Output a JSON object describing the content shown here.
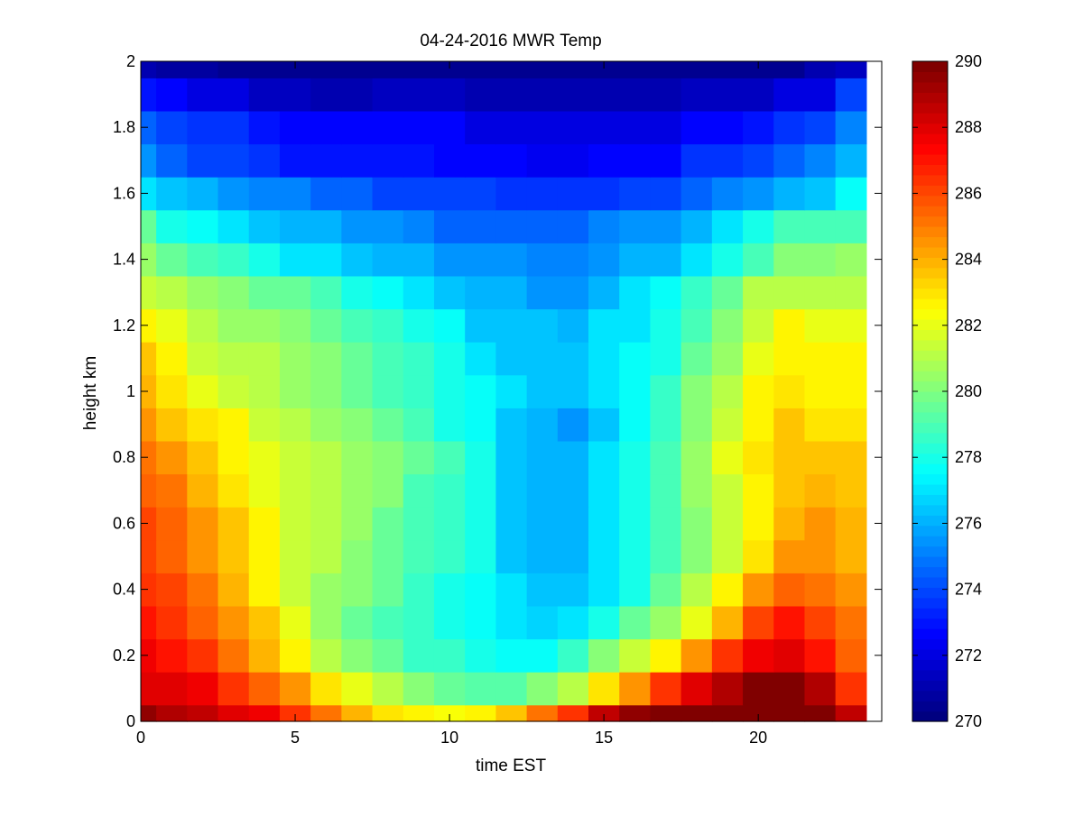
{
  "chart_data": {
    "type": "heatmap",
    "title": "04-24-2016 MWR Temp",
    "xlabel": "time EST",
    "ylabel": "height km",
    "xlim": [
      0,
      24
    ],
    "ylim": [
      0,
      2
    ],
    "xticks": [
      0,
      5,
      10,
      15,
      20
    ],
    "yticks": [
      0,
      0.2,
      0.4,
      0.6,
      0.8,
      1,
      1.2,
      1.4,
      1.6,
      1.8,
      2
    ],
    "colorbar": {
      "range": [
        270,
        290
      ],
      "ticks": [
        270,
        272,
        274,
        276,
        278,
        280,
        282,
        284,
        286,
        288,
        290
      ],
      "colormap": "jet",
      "steps": 64
    },
    "grid": false,
    "x": [
      0,
      1,
      2,
      3,
      4,
      5,
      6,
      7,
      8,
      9,
      10,
      11,
      12,
      13,
      14,
      15,
      16,
      17,
      18,
      19,
      20,
      21,
      22,
      23
    ],
    "y": [
      0,
      0.1,
      0.2,
      0.3,
      0.4,
      0.5,
      0.6,
      0.7,
      0.8,
      0.9,
      1.0,
      1.1,
      1.2,
      1.3,
      1.4,
      1.5,
      1.6,
      1.7,
      1.8,
      1.9,
      2.0
    ],
    "z": [
      [
        289.5,
        289.0,
        288.5,
        288.0,
        287.5,
        286.5,
        285.0,
        284.0,
        283.0,
        282.5,
        282.2,
        282.5,
        283.5,
        285.0,
        286.5,
        288.5,
        289.5,
        289.8,
        289.8,
        289.8,
        289.8,
        289.8,
        289.8,
        288.5
      ],
      [
        288.0,
        288.0,
        287.5,
        286.5,
        285.5,
        284.5,
        283.0,
        282.0,
        281.0,
        280.0,
        279.5,
        279.3,
        279.3,
        280.0,
        281.0,
        283.0,
        284.5,
        286.5,
        288.0,
        289.0,
        290.0,
        290.0,
        289.0,
        286.5
      ],
      [
        287.5,
        287.0,
        286.5,
        285.0,
        284.0,
        282.5,
        281.0,
        280.0,
        279.5,
        278.5,
        278.5,
        278.0,
        277.5,
        277.5,
        278.5,
        280.0,
        281.5,
        282.5,
        284.5,
        286.5,
        287.5,
        288.0,
        287.0,
        285.5
      ],
      [
        287.0,
        286.5,
        285.5,
        284.5,
        283.5,
        282.0,
        280.5,
        279.5,
        279.0,
        278.5,
        278.0,
        277.5,
        277.0,
        276.8,
        277.0,
        278.0,
        279.5,
        280.5,
        282.0,
        284.0,
        286.0,
        287.0,
        286.0,
        285.0
      ],
      [
        286.5,
        286.0,
        285.0,
        284.0,
        282.5,
        281.5,
        280.5,
        280.0,
        279.5,
        278.5,
        278.0,
        277.5,
        277.0,
        276.5,
        276.5,
        277.0,
        278.0,
        279.5,
        281.0,
        282.5,
        284.5,
        285.5,
        285.0,
        284.5
      ],
      [
        286.0,
        285.5,
        284.5,
        283.5,
        282.5,
        281.5,
        281.0,
        280.0,
        279.5,
        279.0,
        278.5,
        278.0,
        276.5,
        276.0,
        276.0,
        277.0,
        278.0,
        279.0,
        280.0,
        281.5,
        283.0,
        284.5,
        284.5,
        284.0
      ],
      [
        286.0,
        285.5,
        284.5,
        283.5,
        282.5,
        281.5,
        281.0,
        280.5,
        279.5,
        279.0,
        278.5,
        278.0,
        276.5,
        276.0,
        276.0,
        277.0,
        278.0,
        279.0,
        280.0,
        281.5,
        282.5,
        284.0,
        284.5,
        284.0
      ],
      [
        285.5,
        285.0,
        284.0,
        283.0,
        282.0,
        281.5,
        281.0,
        280.5,
        280.0,
        279.0,
        278.5,
        278.0,
        276.5,
        276.0,
        276.0,
        277.0,
        278.0,
        279.0,
        280.5,
        281.5,
        282.5,
        283.5,
        284.0,
        283.5
      ],
      [
        285.0,
        284.5,
        283.5,
        282.5,
        282.0,
        281.5,
        281.0,
        280.5,
        280.0,
        279.5,
        279.0,
        278.0,
        276.5,
        276.0,
        276.0,
        277.0,
        278.0,
        279.0,
        280.5,
        282.0,
        283.0,
        283.5,
        283.5,
        283.5
      ],
      [
        284.5,
        283.5,
        283.0,
        282.5,
        281.5,
        281.0,
        280.5,
        280.0,
        279.5,
        279.0,
        278.0,
        277.5,
        276.5,
        276.0,
        275.5,
        276.5,
        277.5,
        278.5,
        280.0,
        281.5,
        282.5,
        283.5,
        283.0,
        283.0
      ],
      [
        284.0,
        283.0,
        282.0,
        281.5,
        281.0,
        280.5,
        280.0,
        279.5,
        279.0,
        278.5,
        278.0,
        277.5,
        277.0,
        276.5,
        276.5,
        277.0,
        277.5,
        278.5,
        280.0,
        281.0,
        282.5,
        283.0,
        282.5,
        282.5
      ],
      [
        283.5,
        282.5,
        281.5,
        281.0,
        281.0,
        280.5,
        280.0,
        279.5,
        279.0,
        278.5,
        278.0,
        277.0,
        276.5,
        276.5,
        276.5,
        277.0,
        277.5,
        278.0,
        279.5,
        280.5,
        282.0,
        282.5,
        282.5,
        282.5
      ],
      [
        282.5,
        282.0,
        281.0,
        280.5,
        280.5,
        280.0,
        279.5,
        279.0,
        278.5,
        278.0,
        277.5,
        276.5,
        276.5,
        276.5,
        276.0,
        277.0,
        277.0,
        278.0,
        279.0,
        280.0,
        281.5,
        282.5,
        282.0,
        282.0
      ],
      [
        281.5,
        281.0,
        280.5,
        280.0,
        279.5,
        279.5,
        279.0,
        278.0,
        277.5,
        277.0,
        276.5,
        276.0,
        276.0,
        275.5,
        275.5,
        276.0,
        277.0,
        277.5,
        278.5,
        279.5,
        281.0,
        281.0,
        281.0,
        281.0
      ],
      [
        280.5,
        279.5,
        279.0,
        278.5,
        278.0,
        277.0,
        277.0,
        276.5,
        276.0,
        276.0,
        275.5,
        275.5,
        275.5,
        275.0,
        275.0,
        275.5,
        276.0,
        276.0,
        277.0,
        278.0,
        279.0,
        280.0,
        280.0,
        280.5
      ],
      [
        279.5,
        278.0,
        277.5,
        277.0,
        276.5,
        276.0,
        276.0,
        275.5,
        275.5,
        275.0,
        274.5,
        274.5,
        274.5,
        274.5,
        274.5,
        275.0,
        275.5,
        275.5,
        276.0,
        277.0,
        278.0,
        279.0,
        279.0,
        279.0
      ],
      [
        277.0,
        276.5,
        276.0,
        275.5,
        275.0,
        275.0,
        274.5,
        274.5,
        274.0,
        274.0,
        274.0,
        274.0,
        273.5,
        273.5,
        273.5,
        273.5,
        274.0,
        274.0,
        274.5,
        275.0,
        275.5,
        276.0,
        276.5,
        277.5
      ],
      [
        275.5,
        274.5,
        274.0,
        274.0,
        273.5,
        273.0,
        273.0,
        273.0,
        273.0,
        273.0,
        272.8,
        272.5,
        272.5,
        272.3,
        272.3,
        272.5,
        272.5,
        272.5,
        273.5,
        273.5,
        274.0,
        274.5,
        275.0,
        276.0
      ],
      [
        274.5,
        274.0,
        273.5,
        273.5,
        273.0,
        272.5,
        272.5,
        272.5,
        272.5,
        272.5,
        272.5,
        272.0,
        272.0,
        272.0,
        272.0,
        272.0,
        272.0,
        272.0,
        272.5,
        272.5,
        273.0,
        273.5,
        274.0,
        275.0
      ],
      [
        273.0,
        272.5,
        272.0,
        272.0,
        271.5,
        271.5,
        271.0,
        271.0,
        271.5,
        271.5,
        271.5,
        271.2,
        271.0,
        271.0,
        271.0,
        271.0,
        271.0,
        271.0,
        271.5,
        271.5,
        271.5,
        272.0,
        272.0,
        274.0
      ],
      [
        271.0,
        270.8,
        270.8,
        270.6,
        270.6,
        270.4,
        270.4,
        270.4,
        270.4,
        270.6,
        270.6,
        270.4,
        270.4,
        270.4,
        270.4,
        270.4,
        270.6,
        270.6,
        270.6,
        270.6,
        270.4,
        270.6,
        271.0,
        271.5
      ]
    ]
  }
}
